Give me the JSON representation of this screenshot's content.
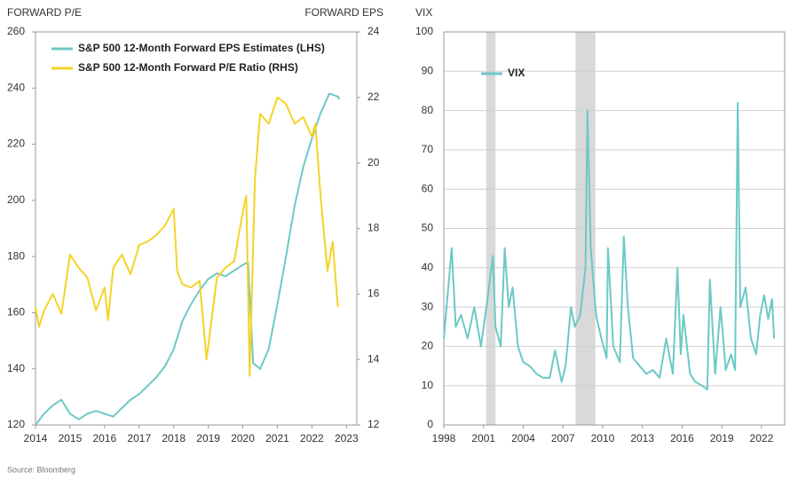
{
  "chart_data": [
    {
      "type": "line",
      "y_label": "FORWARD P/E",
      "y2_label": "FORWARD EPS",
      "xlim": [
        2014,
        2023.3
      ],
      "xticks": [
        2014,
        2015,
        2016,
        2017,
        2018,
        2019,
        2020,
        2021,
        2022,
        2023
      ],
      "ylim": [
        120,
        260
      ],
      "yticks": [
        120,
        140,
        160,
        180,
        200,
        220,
        240,
        260
      ],
      "y2lim": [
        12,
        24
      ],
      "y2ticks": [
        12,
        14,
        16,
        18,
        20,
        22,
        24
      ],
      "grid": false,
      "legend": "upper left",
      "series": [
        {
          "name": "S&P 500 12-Month Forward EPS Estimates (LHS)",
          "color": "#6cc9c6",
          "x": [
            2014.0,
            2014.25,
            2014.5,
            2014.75,
            2015.0,
            2015.25,
            2015.5,
            2015.75,
            2016.0,
            2016.25,
            2016.5,
            2016.75,
            2017.0,
            2017.25,
            2017.5,
            2017.75,
            2018.0,
            2018.25,
            2018.5,
            2018.75,
            2019.0,
            2019.25,
            2019.5,
            2019.75,
            2020.0,
            2020.15,
            2020.3,
            2020.5,
            2020.75,
            2021.0,
            2021.25,
            2021.5,
            2021.75,
            2022.0,
            2022.25,
            2022.5,
            2022.75,
            2022.8
          ],
          "values": [
            120,
            124,
            127,
            129,
            124,
            122,
            124,
            125,
            124,
            123,
            126,
            129,
            131,
            134,
            137,
            141,
            147,
            157,
            163,
            168,
            172,
            174,
            173,
            175,
            177,
            178,
            142,
            140,
            147,
            163,
            180,
            198,
            212,
            222,
            231,
            238,
            237,
            236
          ]
        },
        {
          "name": "S&P 500 12-Month Forward P/E Ratio (RHS)",
          "color": "#f5d327",
          "axis": "y2",
          "x": [
            2014.0,
            2014.1,
            2014.25,
            2014.5,
            2014.75,
            2015.0,
            2015.25,
            2015.5,
            2015.75,
            2016.0,
            2016.1,
            2016.25,
            2016.5,
            2016.75,
            2017.0,
            2017.25,
            2017.5,
            2017.75,
            2018.0,
            2018.1,
            2018.25,
            2018.5,
            2018.75,
            2018.95,
            2019.25,
            2019.5,
            2019.75,
            2020.0,
            2020.1,
            2020.2,
            2020.35,
            2020.5,
            2020.75,
            2021.0,
            2021.25,
            2021.5,
            2021.75,
            2022.0,
            2022.1,
            2022.25,
            2022.45,
            2022.6,
            2022.75
          ],
          "values": [
            15.6,
            15.0,
            15.5,
            16.0,
            15.4,
            17.2,
            16.8,
            16.5,
            15.5,
            16.2,
            15.2,
            16.8,
            17.2,
            16.6,
            17.5,
            17.6,
            17.8,
            18.1,
            18.6,
            16.7,
            16.3,
            16.2,
            16.4,
            14.0,
            16.5,
            16.8,
            17.0,
            18.5,
            19.0,
            13.5,
            19.5,
            21.5,
            21.2,
            22.0,
            21.8,
            21.2,
            21.4,
            20.8,
            21.2,
            19.0,
            16.7,
            17.6,
            15.6
          ]
        }
      ]
    },
    {
      "type": "line",
      "y_label": "VIX",
      "xlim": [
        1998,
        2023.75
      ],
      "xticks": [
        1998,
        2001,
        2004,
        2007,
        2010,
        2013,
        2016,
        2019,
        2022
      ],
      "ylim": [
        0,
        100
      ],
      "yticks": [
        0,
        10,
        20,
        30,
        40,
        50,
        60,
        70,
        80,
        90,
        100
      ],
      "grid": true,
      "legend": "upper left",
      "shaded_periods": [
        [
          2001.2,
          2001.9
        ],
        [
          2007.95,
          2009.45
        ]
      ],
      "shade_color": "#d9d9d9",
      "series": [
        {
          "name": "VIX",
          "color": "#6cc9c6",
          "x": [
            1998.0,
            1998.6,
            1998.9,
            1999.3,
            1999.8,
            2000.3,
            2000.8,
            2001.3,
            2001.7,
            2001.9,
            2002.3,
            2002.6,
            2002.9,
            2003.2,
            2003.6,
            2004.0,
            2004.5,
            2005.0,
            2005.5,
            2006.0,
            2006.4,
            2006.9,
            2007.2,
            2007.6,
            2007.9,
            2008.3,
            2008.7,
            2008.85,
            2009.1,
            2009.5,
            2009.9,
            2010.3,
            2010.4,
            2010.8,
            2011.3,
            2011.6,
            2011.9,
            2012.3,
            2012.8,
            2013.3,
            2013.8,
            2014.3,
            2014.8,
            2015.3,
            2015.65,
            2015.9,
            2016.1,
            2016.6,
            2017.0,
            2017.5,
            2017.9,
            2018.1,
            2018.5,
            2018.9,
            2019.3,
            2019.7,
            2020.0,
            2020.2,
            2020.4,
            2020.8,
            2021.2,
            2021.6,
            2021.9,
            2022.2,
            2022.5,
            2022.8,
            2022.95
          ],
          "values": [
            22,
            45,
            25,
            28,
            22,
            30,
            20,
            32,
            43,
            25,
            20,
            45,
            30,
            35,
            20,
            16,
            15,
            13,
            12,
            12,
            19,
            11,
            15,
            30,
            25,
            28,
            40,
            80,
            45,
            28,
            22,
            17,
            45,
            20,
            16,
            48,
            30,
            17,
            15,
            13,
            14,
            12,
            22,
            13,
            40,
            18,
            28,
            13,
            11,
            10,
            9,
            37,
            13,
            30,
            14,
            18,
            14,
            82,
            30,
            35,
            22,
            18,
            28,
            33,
            27,
            32,
            22
          ]
        }
      ]
    }
  ],
  "source": "Source: Bloomberg"
}
